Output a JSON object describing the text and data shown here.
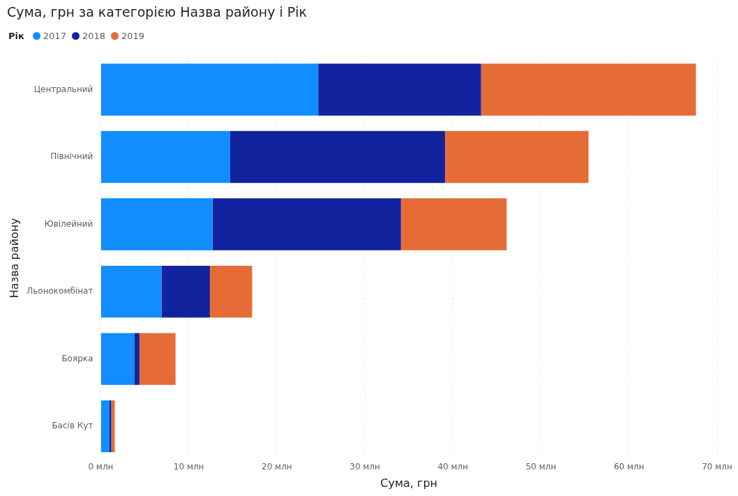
{
  "chart_data": {
    "type": "bar",
    "orientation": "horizontal",
    "stacked": true,
    "title": "Сума, грн за категорією Назва району і Рік",
    "xlabel": "Сума, грн",
    "ylabel": "Назва району",
    "legend_title": "Рік",
    "legend": "top left",
    "grid": "x",
    "categories": [
      "Центральний",
      "Північний",
      "Ювілейний",
      "Льонокомбінат",
      "Боярка",
      "Басів Кут"
    ],
    "series": [
      {
        "name": "2017",
        "color": "#118dff",
        "values": [
          24.7,
          14.7,
          12.7,
          6.9,
          3.8,
          1.0
        ]
      },
      {
        "name": "2018",
        "color": "#12239e",
        "values": [
          18.5,
          24.4,
          21.4,
          5.5,
          0.6,
          0.2
        ]
      },
      {
        "name": "2019",
        "color": "#e66c37",
        "values": [
          24.4,
          16.3,
          12.0,
          4.8,
          4.1,
          0.4
        ]
      }
    ],
    "xlim": [
      0,
      70
    ],
    "xticks": [
      {
        "value": 0,
        "label": "0 млн"
      },
      {
        "value": 10,
        "label": "10 млн"
      },
      {
        "value": 20,
        "label": "20 млн"
      },
      {
        "value": 30,
        "label": "30 млн"
      },
      {
        "value": 40,
        "label": "40 млн"
      },
      {
        "value": 50,
        "label": "50 млн"
      },
      {
        "value": 60,
        "label": "60 млн"
      },
      {
        "value": 70,
        "label": "70 млн"
      }
    ]
  }
}
